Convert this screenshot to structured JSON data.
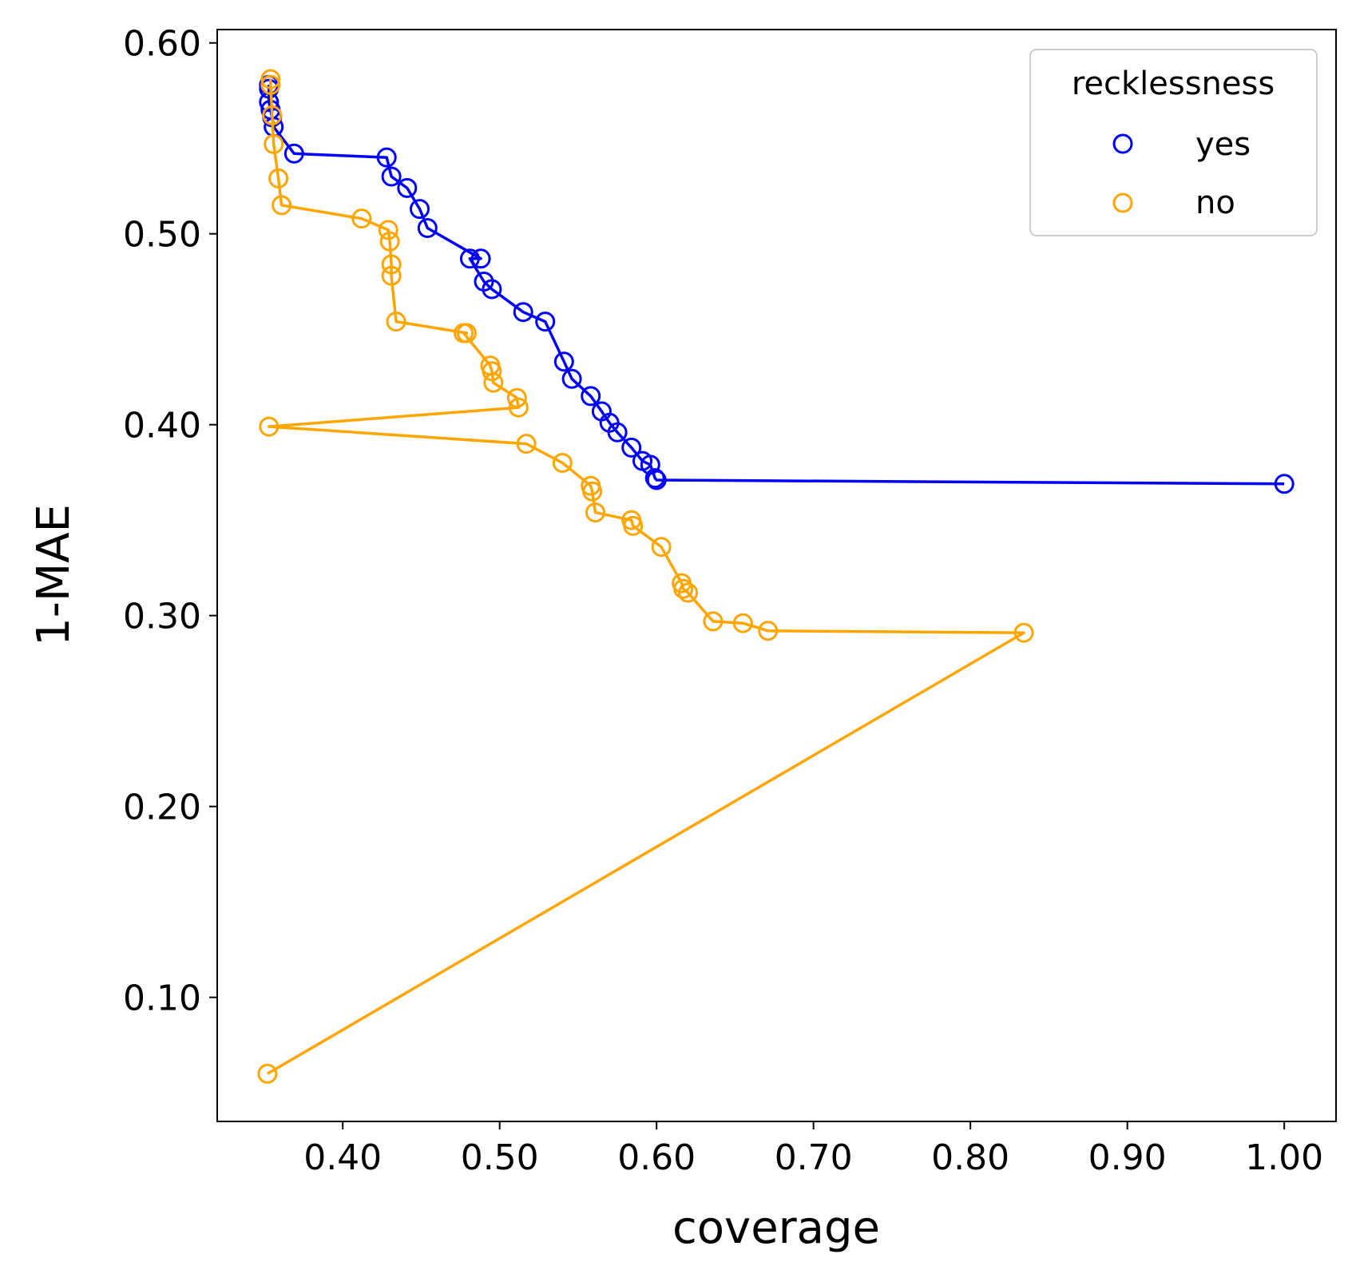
{
  "chart_data": {
    "type": "line",
    "xlabel": "coverage",
    "ylabel": "1-MAE",
    "xlim": [
      0.32,
      1.033
    ],
    "ylim": [
      0.035,
      0.607
    ],
    "x_ticks": [
      "0.40",
      "0.50",
      "0.60",
      "0.70",
      "0.80",
      "0.90",
      "1.00"
    ],
    "x_tick_values": [
      0.4,
      0.5,
      0.6,
      0.7,
      0.8,
      0.9,
      1.0
    ],
    "y_ticks": [
      "0.10",
      "0.20",
      "0.30",
      "0.40",
      "0.50",
      "0.60"
    ],
    "y_tick_values": [
      0.1,
      0.2,
      0.3,
      0.4,
      0.5,
      0.6
    ],
    "legend": {
      "title": "recklessness",
      "position": "top-right"
    },
    "series": [
      {
        "name": "yes",
        "color": "#0000ff",
        "marker": "open-circle",
        "points": [
          [
            0.353,
            0.578
          ],
          [
            0.353,
            0.576
          ],
          [
            0.353,
            0.569
          ],
          [
            0.354,
            0.565
          ],
          [
            0.355,
            0.561
          ],
          [
            0.356,
            0.556
          ],
          [
            0.369,
            0.542
          ],
          [
            0.428,
            0.54
          ],
          [
            0.431,
            0.53
          ],
          [
            0.441,
            0.524
          ],
          [
            0.449,
            0.513
          ],
          [
            0.454,
            0.503
          ],
          [
            0.481,
            0.487
          ],
          [
            0.488,
            0.487
          ],
          [
            0.49,
            0.475
          ],
          [
            0.495,
            0.471
          ],
          [
            0.515,
            0.459
          ],
          [
            0.529,
            0.454
          ],
          [
            0.541,
            0.433
          ],
          [
            0.546,
            0.424
          ],
          [
            0.558,
            0.415
          ],
          [
            0.565,
            0.407
          ],
          [
            0.57,
            0.401
          ],
          [
            0.575,
            0.396
          ],
          [
            0.584,
            0.388
          ],
          [
            0.591,
            0.381
          ],
          [
            0.596,
            0.379
          ],
          [
            0.599,
            0.372
          ],
          [
            0.6,
            0.371
          ],
          [
            1.0,
            0.369
          ]
        ]
      },
      {
        "name": "no",
        "color": "#ffa500",
        "marker": "open-circle",
        "points": [
          [
            0.352,
            0.06
          ],
          [
            0.353,
            0.399
          ],
          [
            0.354,
            0.581
          ],
          [
            0.354,
            0.578
          ],
          [
            0.355,
            0.562
          ],
          [
            0.356,
            0.547
          ],
          [
            0.359,
            0.529
          ],
          [
            0.361,
            0.515
          ],
          [
            0.412,
            0.508
          ],
          [
            0.429,
            0.502
          ],
          [
            0.43,
            0.496
          ],
          [
            0.431,
            0.484
          ],
          [
            0.431,
            0.478
          ],
          [
            0.434,
            0.454
          ],
          [
            0.477,
            0.448
          ],
          [
            0.479,
            0.448
          ],
          [
            0.494,
            0.431
          ],
          [
            0.495,
            0.428
          ],
          [
            0.496,
            0.422
          ],
          [
            0.511,
            0.414
          ],
          [
            0.512,
            0.409
          ],
          [
            0.517,
            0.39
          ],
          [
            0.54,
            0.38
          ],
          [
            0.558,
            0.368
          ],
          [
            0.559,
            0.365
          ],
          [
            0.561,
            0.354
          ],
          [
            0.584,
            0.35
          ],
          [
            0.585,
            0.347
          ],
          [
            0.603,
            0.336
          ],
          [
            0.616,
            0.317
          ],
          [
            0.617,
            0.314
          ],
          [
            0.62,
            0.312
          ],
          [
            0.636,
            0.297
          ],
          [
            0.655,
            0.296
          ],
          [
            0.671,
            0.292
          ],
          [
            0.834,
            0.291
          ]
        ]
      }
    ]
  }
}
